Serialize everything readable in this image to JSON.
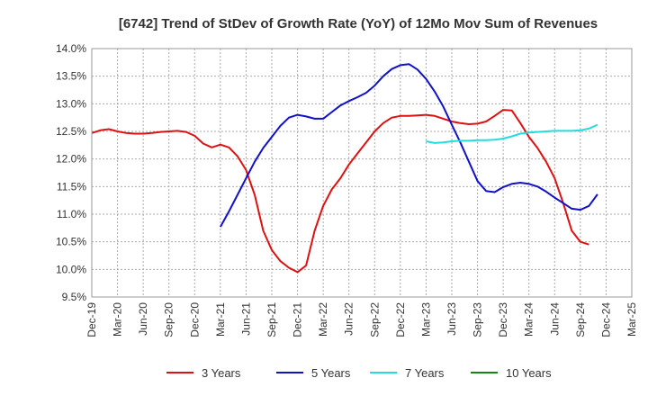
{
  "chart_data": {
    "type": "line",
    "title": "[6742]  Trend of StDev of Growth Rate (YoY) of 12Mo Mov Sum of Revenues",
    "xlabel": "",
    "ylabel": "",
    "ylim": [
      9.5,
      14.0
    ],
    "yticks": [
      "9.5%",
      "10.0%",
      "10.5%",
      "11.0%",
      "11.5%",
      "12.0%",
      "12.5%",
      "13.0%",
      "13.5%",
      "14.0%"
    ],
    "xticks": [
      "Dec-19",
      "Mar-20",
      "Jun-20",
      "Sep-20",
      "Dec-20",
      "Mar-21",
      "Jun-21",
      "Sep-21",
      "Dec-21",
      "Mar-22",
      "Jun-22",
      "Sep-22",
      "Dec-22",
      "Mar-23",
      "Jun-23",
      "Sep-23",
      "Dec-23",
      "Mar-24",
      "Jun-24",
      "Sep-24",
      "Dec-24",
      "Mar-25"
    ],
    "x_start": "Dec-19",
    "legend_position": "bottom",
    "series": [
      {
        "name": "3 Years",
        "color": "#dd1111",
        "start_index": 0,
        "values": [
          12.47,
          12.52,
          12.54,
          12.5,
          12.47,
          12.46,
          12.46,
          12.47,
          12.49,
          12.5,
          12.51,
          12.49,
          12.42,
          12.28,
          12.21,
          12.26,
          12.21,
          12.05,
          11.8,
          11.35,
          10.7,
          10.35,
          10.15,
          10.03,
          9.95,
          10.07,
          10.7,
          11.15,
          11.45,
          11.65,
          11.9,
          12.1,
          12.3,
          12.5,
          12.65,
          12.75,
          12.78,
          12.78,
          12.79,
          12.8,
          12.78,
          12.73,
          12.68,
          12.65,
          12.63,
          12.64,
          12.68,
          12.78,
          12.89,
          12.88,
          12.65,
          12.4,
          12.2,
          11.95,
          11.65,
          11.2,
          10.7,
          10.5,
          10.45
        ]
      },
      {
        "name": "5 Years",
        "color": "#1111cc",
        "start_index": 15,
        "values": [
          10.77,
          11.05,
          11.35,
          11.65,
          11.95,
          12.2,
          12.4,
          12.6,
          12.75,
          12.8,
          12.77,
          12.73,
          12.73,
          12.85,
          12.97,
          13.05,
          13.12,
          13.2,
          13.33,
          13.5,
          13.63,
          13.7,
          13.72,
          13.62,
          13.45,
          13.22,
          12.95,
          12.62,
          12.3,
          11.95,
          11.6,
          11.42,
          11.4,
          11.49,
          11.55,
          11.57,
          11.55,
          11.5,
          11.41,
          11.3,
          11.2,
          11.1,
          11.08,
          11.15,
          11.36
        ]
      },
      {
        "name": "7 Years",
        "color": "#22dddd",
        "start_index": 39,
        "values": [
          12.32,
          12.29,
          12.3,
          12.32,
          12.33,
          12.33,
          12.34,
          12.34,
          12.35,
          12.37,
          12.41,
          12.46,
          12.48,
          12.49,
          12.5,
          12.51,
          12.51,
          12.51,
          12.52,
          12.55,
          12.62
        ]
      },
      {
        "name": "10 Years",
        "color": "#118811",
        "start_index": 0,
        "values": []
      }
    ]
  }
}
